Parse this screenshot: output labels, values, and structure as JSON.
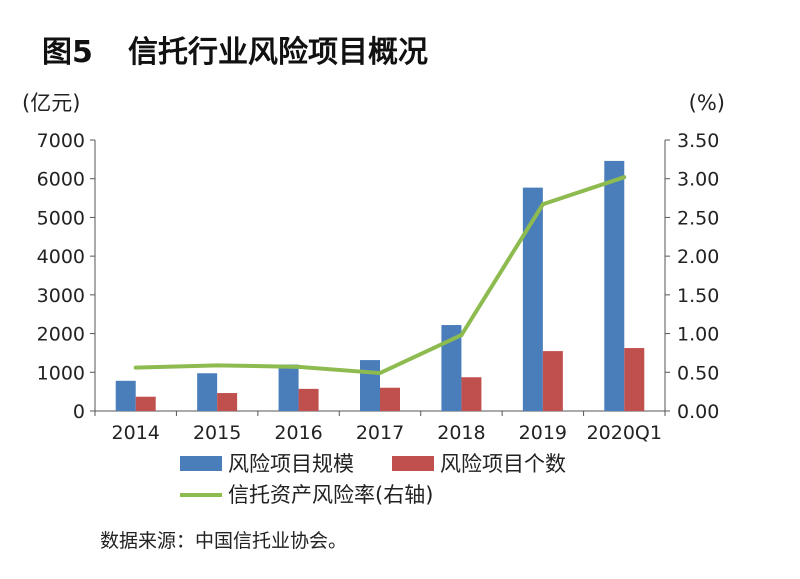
{
  "figure": {
    "label": "图5",
    "title": "信托行业风险项目概况",
    "source": "数据来源：中国信托业协会。"
  },
  "chart_data": {
    "type": "bar",
    "categories": [
      "2014",
      "2015",
      "2016",
      "2017",
      "2018",
      "2019",
      "2020Q1"
    ],
    "left_axis": {
      "unit": "(亿元)",
      "ylim": [
        0,
        7000
      ],
      "ticks": [
        "0",
        "1000",
        "2000",
        "3000",
        "4000",
        "5000",
        "6000",
        "7000"
      ]
    },
    "right_axis": {
      "unit": "(%)",
      "ylim": [
        0,
        3.5
      ],
      "ticks": [
        "0.00",
        "0.50",
        "1.00",
        "1.50",
        "2.00",
        "2.50",
        "3.00",
        "3.50"
      ]
    },
    "series": [
      {
        "name": "风险项目规模",
        "type": "bar",
        "axis": "left",
        "color": "#4a7ebb",
        "values": [
          780,
          975,
          1200,
          1315,
          2220,
          5770,
          6460
        ]
      },
      {
        "name": "风险项目个数",
        "type": "bar",
        "axis": "left",
        "color": "#c0504d",
        "values": [
          369,
          464,
          572,
          601,
          872,
          1547,
          1626
        ]
      },
      {
        "name": "信托资产风险率(右轴)",
        "type": "line",
        "axis": "right",
        "color": "#8dbb4f",
        "values": [
          0.56,
          0.59,
          0.57,
          0.49,
          0.98,
          2.67,
          3.02
        ]
      }
    ],
    "grid": false,
    "legend_position": "bottom"
  }
}
